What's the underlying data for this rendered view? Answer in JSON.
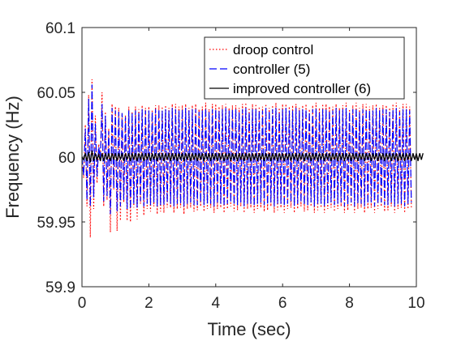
{
  "chart_data": {
    "type": "line",
    "title": "",
    "xlabel": "Time (sec)",
    "ylabel": "Frequency (Hz)",
    "xlim": [
      0,
      10
    ],
    "ylim": [
      59.9,
      60.1
    ],
    "xticks": [
      "0",
      "2",
      "4",
      "6",
      "8",
      "10"
    ],
    "yticks": [
      "59.9",
      "59.95",
      "60",
      "60.05",
      "60.1"
    ],
    "grid": false,
    "legend_position": "top-right",
    "sample_period": 0.05,
    "series": [
      {
        "name": "droop control",
        "color": "#ff0000",
        "style": "dotted",
        "values": [
          60.0,
          59.984,
          60.025,
          59.962,
          60.048,
          59.938,
          60.06,
          59.96,
          60.032,
          59.98,
          60.01,
          59.997,
          60.05,
          59.962,
          60.035,
          59.967,
          60.022,
          59.942,
          60.041,
          59.975,
          60.039,
          59.943,
          60.038,
          59.951,
          60.034,
          59.965,
          60.032,
          59.951,
          60.039,
          59.95,
          60.035,
          59.961,
          60.039,
          59.952,
          60.037,
          59.964,
          60.04,
          59.955,
          60.038,
          59.96,
          60.039,
          59.958,
          60.036,
          59.962,
          60.04,
          59.956,
          60.04,
          59.958,
          60.039,
          59.957,
          60.04,
          59.961,
          60.038,
          59.961,
          60.041,
          59.957,
          60.041,
          59.96,
          60.039,
          59.961,
          60.04,
          59.956,
          60.041,
          59.96,
          60.038,
          59.961,
          60.04,
          59.958,
          60.041,
          59.959,
          60.037,
          59.962,
          60.039,
          59.958,
          60.042,
          59.96,
          60.037,
          59.961,
          60.041,
          59.957,
          60.041,
          59.96,
          60.039,
          59.961,
          60.04,
          59.957,
          60.041,
          59.96,
          60.038,
          59.962,
          60.04,
          59.958,
          60.04,
          59.959,
          60.038,
          59.962,
          60.041,
          59.957,
          60.042,
          59.96,
          60.038,
          59.961,
          60.041,
          59.957,
          60.041,
          59.96,
          60.039,
          59.961,
          60.039,
          59.958,
          60.041,
          59.959,
          60.038,
          59.962,
          60.04,
          59.957,
          60.042,
          59.959,
          60.038,
          59.961,
          60.041,
          59.957,
          60.041,
          59.96,
          60.039,
          59.961,
          60.04,
          59.957,
          60.041,
          59.96,
          60.038,
          59.962,
          60.04,
          59.958,
          60.041,
          59.959,
          60.037,
          59.962,
          60.04,
          59.957,
          60.042,
          59.959,
          60.038,
          59.961,
          60.041,
          59.957,
          60.041,
          59.96,
          60.039,
          59.961,
          60.039,
          59.958,
          60.041,
          59.96,
          60.038,
          59.962,
          60.04,
          59.957,
          60.042,
          59.959,
          60.037,
          59.962,
          60.04,
          59.957,
          60.042,
          59.96,
          60.038,
          59.961,
          60.041,
          59.957,
          60.041,
          59.96,
          60.039,
          59.961,
          60.04,
          59.957,
          60.041,
          59.96,
          60.038,
          59.962,
          60.04,
          59.958,
          60.04,
          59.959,
          60.038,
          59.962,
          60.041,
          59.957,
          60.042,
          59.96,
          60.038,
          59.961,
          60.041,
          59.957,
          60.041,
          59.96,
          60.039,
          59.961
        ]
      },
      {
        "name": "controller (5)",
        "color": "#0000ff",
        "style": "dashed",
        "values": [
          60.0,
          59.986,
          60.022,
          59.967,
          60.045,
          59.962,
          60.056,
          59.969,
          60.026,
          59.985,
          60.008,
          59.999,
          60.041,
          59.966,
          60.032,
          59.97,
          60.02,
          59.956,
          60.038,
          59.976,
          60.036,
          59.958,
          60.035,
          59.962,
          60.034,
          59.967,
          60.031,
          59.96,
          60.036,
          59.96,
          60.034,
          59.964,
          60.036,
          59.961,
          60.035,
          59.966,
          60.037,
          59.962,
          60.036,
          59.964,
          60.036,
          59.963,
          60.035,
          59.965,
          60.037,
          59.962,
          60.037,
          59.963,
          60.036,
          59.963,
          60.037,
          59.965,
          60.036,
          59.964,
          60.038,
          59.962,
          60.037,
          59.964,
          60.036,
          59.964,
          60.037,
          59.962,
          60.038,
          59.964,
          60.036,
          59.965,
          60.037,
          59.963,
          60.037,
          59.963,
          60.035,
          59.965,
          60.036,
          59.963,
          60.038,
          59.964,
          60.035,
          59.964,
          60.037,
          59.962,
          60.037,
          59.964,
          60.036,
          59.964,
          60.037,
          59.962,
          60.038,
          59.964,
          60.036,
          59.965,
          60.037,
          59.963,
          60.037,
          59.963,
          60.035,
          59.965,
          60.037,
          59.962,
          60.038,
          59.964,
          60.035,
          59.964,
          60.037,
          59.962,
          60.037,
          59.964,
          60.036,
          59.965,
          60.036,
          59.963,
          60.038,
          59.963,
          60.036,
          59.965,
          60.037,
          59.962,
          60.038,
          59.964,
          60.035,
          59.964,
          60.037,
          59.962,
          60.038,
          59.964,
          60.036,
          59.965,
          60.036,
          59.962,
          60.038,
          59.964,
          60.036,
          59.965,
          60.037,
          59.963,
          60.037,
          59.963,
          60.035,
          59.965,
          60.037,
          59.962,
          60.038,
          59.964,
          60.035,
          59.964,
          60.037,
          59.962,
          60.037,
          59.964,
          60.036,
          59.965,
          60.036,
          59.963,
          60.038,
          59.964,
          60.036,
          59.965,
          60.037,
          59.962,
          60.038,
          59.963,
          60.035,
          59.965,
          60.037,
          59.962,
          60.038,
          59.964,
          60.035,
          59.964,
          60.037,
          59.962,
          60.037,
          59.964,
          60.036,
          59.965,
          60.036,
          59.962,
          60.038,
          59.964,
          60.036,
          59.965,
          60.037,
          59.963,
          60.037,
          59.963,
          60.035,
          59.965,
          60.037,
          59.962,
          60.038,
          59.964,
          60.035,
          59.964,
          60.037,
          59.962,
          60.037,
          59.964,
          60.036,
          59.965
        ]
      },
      {
        "name": "improved controller (6)",
        "color": "#000000",
        "style": "solid",
        "values": [
          60.0,
          59.998,
          60.003,
          59.997,
          60.004,
          59.996,
          60.005,
          59.997,
          60.003,
          59.998,
          60.002,
          59.997,
          60.003,
          59.997,
          60.003,
          59.998,
          60.003,
          59.997,
          60.003,
          59.998,
          60.003,
          59.997,
          60.003,
          59.998,
          60.003,
          59.997,
          60.003,
          59.998,
          60.003,
          59.997,
          60.003,
          59.998,
          60.003,
          59.997,
          60.003,
          59.998,
          60.003,
          59.997,
          60.003,
          59.998,
          60.003,
          59.997,
          60.003,
          59.998,
          60.003,
          59.997,
          60.003,
          59.998,
          60.003,
          59.997,
          60.003,
          59.998,
          60.003,
          59.997,
          60.003,
          59.998,
          60.003,
          59.997,
          60.003,
          59.998,
          60.003,
          59.997,
          60.003,
          59.998,
          60.003,
          59.997,
          60.003,
          59.998,
          60.003,
          59.997,
          60.003,
          59.998,
          60.003,
          59.997,
          60.003,
          59.998,
          60.003,
          59.997,
          60.003,
          59.998,
          60.003,
          59.997,
          60.003,
          59.998,
          60.003,
          59.997,
          60.003,
          59.998,
          60.003,
          59.997,
          60.003,
          59.998,
          60.003,
          59.997,
          60.003,
          59.998,
          60.003,
          59.997,
          60.003,
          59.998,
          60.003,
          59.997,
          60.003,
          59.998,
          60.003,
          59.997,
          60.003,
          59.998,
          60.003,
          59.997,
          60.003,
          59.998,
          60.003,
          59.997,
          60.003,
          59.998,
          60.003,
          59.997,
          60.003,
          59.998,
          60.003,
          59.997,
          60.003,
          59.998,
          60.003,
          59.997,
          60.003,
          59.998,
          60.003,
          59.997,
          60.003,
          59.998,
          60.003,
          59.997,
          60.003,
          59.998,
          60.003,
          59.997,
          60.003,
          59.998,
          60.003,
          59.997,
          60.003,
          59.998,
          60.003,
          59.997,
          60.003,
          59.998,
          60.003,
          59.997,
          60.003,
          59.998,
          60.003,
          59.997,
          60.003,
          59.998,
          60.003,
          59.997,
          60.003,
          59.998,
          60.003,
          59.997,
          60.003,
          59.998,
          60.003,
          59.997,
          60.003,
          59.998,
          60.003,
          59.997,
          60.003,
          59.998,
          60.003,
          59.997,
          60.003,
          59.998,
          60.003,
          59.997,
          60.003,
          59.998,
          60.003,
          59.997,
          60.003,
          59.998,
          60.003,
          59.997,
          60.003,
          59.998,
          60.003,
          59.997,
          60.003,
          59.998,
          60.003,
          59.997,
          60.003,
          59.998,
          60.003,
          59.997,
          60.003,
          59.998,
          60.003,
          59.997,
          60.003,
          59.998,
          60.003
        ]
      }
    ]
  }
}
